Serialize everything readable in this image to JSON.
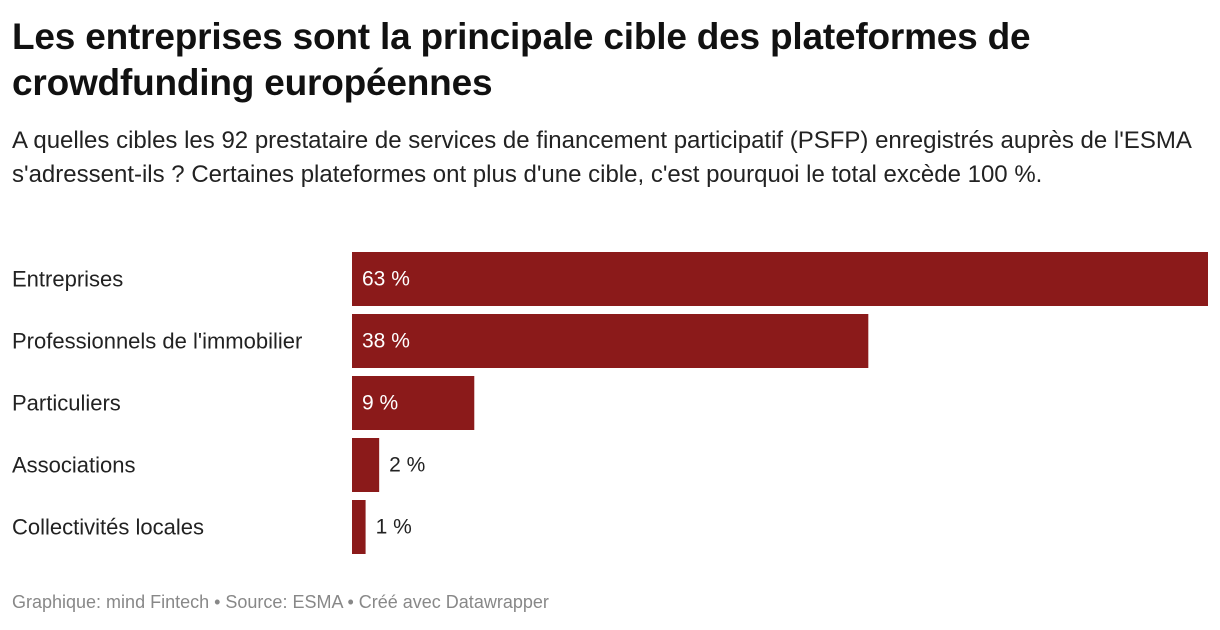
{
  "header": {
    "title": "Les entreprises sont la principale cible des plateformes de crowdfunding européennes",
    "subtitle": "A quelles cibles les 92 prestataire de services de financement participatif (PSFP) enregistrés auprès de l'ESMA s'adressent-ils ? Certaines plateformes ont plus d'une cible, c'est pourquoi le total excède 100 %."
  },
  "chart_data": {
    "type": "bar",
    "orientation": "horizontal",
    "categories": [
      "Entreprises",
      "Professionnels de l'immobilier",
      "Particuliers",
      "Associations",
      "Collectivités locales"
    ],
    "values": [
      63,
      38,
      9,
      2,
      1
    ],
    "value_labels": [
      "63 %",
      "38 %",
      "9 %",
      "2 %",
      "1 %"
    ],
    "unit": "%",
    "xlim": [
      0,
      63
    ],
    "grid": false,
    "legend": "none",
    "bar_color": "#8b1a1a"
  },
  "footer": {
    "credit": "Graphique: mind Fintech • Source: ESMA • Créé avec Datawrapper"
  }
}
